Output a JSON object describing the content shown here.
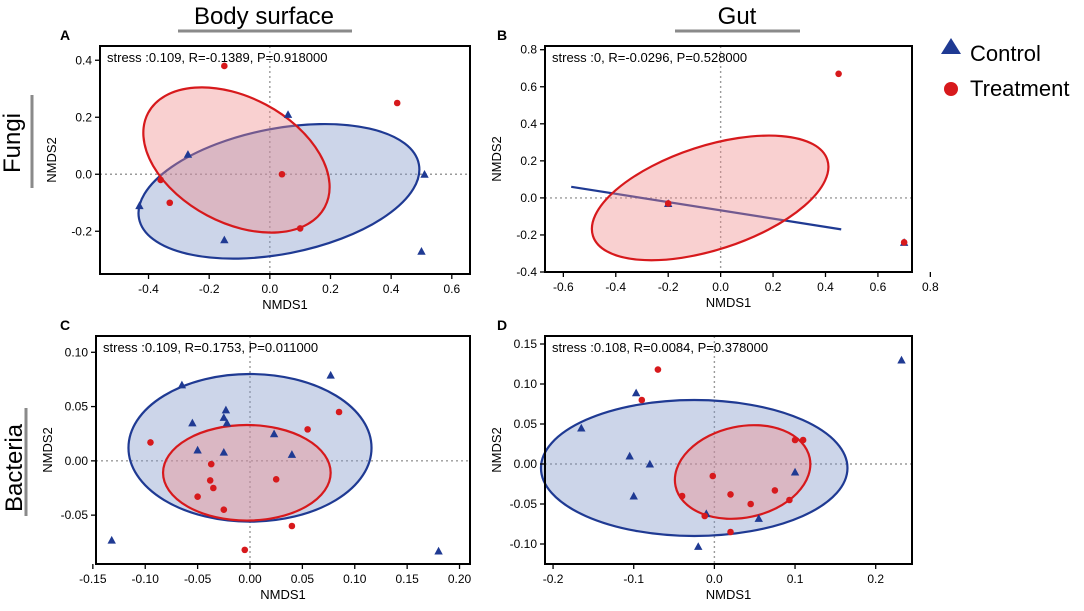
{
  "headers": {
    "left": "Body surface",
    "right": "Gut",
    "row1": "Fungi",
    "row2": "Bacteria"
  },
  "legend": {
    "control": "Control",
    "treatment": "Treatment"
  },
  "colors": {
    "control": "#1F3A93",
    "treatment": "#D7191C",
    "control_fill": "#7F97C9",
    "treatment_fill": "#F08A8A",
    "axis_line": "#000000",
    "zero_line": "#9A9A9A"
  },
  "chart_data": [
    {
      "type": "scatter",
      "panel": "A",
      "annotation": "stress :0.109, R=-0.1389, P=0.918000",
      "xlabel": "NMDS1",
      "ylabel": "NMDS2",
      "xlim": [
        -0.56,
        0.66
      ],
      "ylim": [
        -0.35,
        0.45
      ],
      "xticks": [
        -0.4,
        -0.2,
        0.0,
        0.2,
        0.4,
        0.6
      ],
      "xtick_labels": [
        "-0.4",
        "-0.2",
        "0.0",
        "0.2",
        "0.4",
        "0.6"
      ],
      "yticks": [
        -0.2,
        0.0,
        0.2,
        0.4
      ],
      "ytick_labels": [
        "-0.2",
        "0.0",
        "0.2",
        "0.4"
      ],
      "series": [
        {
          "name": "Control",
          "points": [
            [
              -0.43,
              -0.11
            ],
            [
              -0.27,
              0.07
            ],
            [
              -0.15,
              -0.23
            ],
            [
              0.06,
              0.21
            ],
            [
              0.51,
              0.0
            ],
            [
              0.5,
              -0.27
            ]
          ],
          "ellipse": {
            "cx": 0.03,
            "cy": -0.06,
            "rx": 0.47,
            "ry": 0.22,
            "rotation": -11
          }
        },
        {
          "name": "Treatment",
          "points": [
            [
              -0.15,
              0.38
            ],
            [
              -0.36,
              -0.02
            ],
            [
              -0.33,
              -0.1
            ],
            [
              0.04,
              0.0
            ],
            [
              0.1,
              -0.19
            ],
            [
              0.42,
              0.25
            ]
          ],
          "ellipse": {
            "cx": -0.11,
            "cy": 0.05,
            "rx": 0.33,
            "ry": 0.22,
            "rotation": 28
          }
        }
      ]
    },
    {
      "type": "scatter",
      "panel": "B",
      "annotation": "stress :0, R=-0.0296, P=0.528000",
      "xlabel": "NMDS1",
      "ylabel": "NMDS2",
      "xlim": [
        -0.67,
        0.73
      ],
      "ylim": [
        -0.4,
        0.82
      ],
      "xticks": [
        -0.6,
        -0.4,
        -0.2,
        0.0,
        0.2,
        0.4,
        0.6,
        0.8
      ],
      "xtick_labels": [
        "-0.6",
        "-0.4",
        "-0.2",
        "0.0",
        "0.2",
        "0.4",
        "0.6",
        "0.8"
      ],
      "yticks": [
        -0.4,
        -0.2,
        0.0,
        0.2,
        0.4,
        0.6,
        0.8
      ],
      "ytick_labels": [
        "-0.4",
        "-0.2",
        "0.0",
        "0.2",
        "0.4",
        "0.6",
        "0.8"
      ],
      "series": [
        {
          "name": "Control",
          "points": [
            [
              -0.2,
              -0.03
            ],
            [
              0.7,
              -0.24
            ]
          ],
          "line": [
            [
              -0.57,
              0.06
            ],
            [
              0.46,
              -0.17
            ]
          ]
        },
        {
          "name": "Treatment",
          "points": [
            [
              0.45,
              0.67
            ],
            [
              0.7,
              -0.24
            ],
            [
              -0.2,
              -0.03
            ]
          ],
          "ellipse": {
            "cx": -0.04,
            "cy": 0.0,
            "rx": 0.47,
            "ry": 0.28,
            "rotation": -18
          }
        }
      ]
    },
    {
      "type": "scatter",
      "panel": "C",
      "annotation": "stress :0.109, R=0.1753, P=0.011000",
      "xlabel": "NMDS1",
      "ylabel": "NMDS2",
      "xlim": [
        -0.147,
        0.21
      ],
      "ylim": [
        -0.095,
        0.115
      ],
      "xticks": [
        -0.15,
        -0.1,
        -0.05,
        0.0,
        0.05,
        0.1,
        0.15,
        0.2
      ],
      "xtick_labels": [
        "-0.15",
        "-0.10",
        "-0.05",
        "0.00",
        "0.05",
        "0.10",
        "0.15",
        "0.20"
      ],
      "yticks": [
        -0.05,
        0.0,
        0.05,
        0.1
      ],
      "ytick_labels": [
        "-0.05",
        "0.00",
        "0.05",
        "0.10"
      ],
      "series": [
        {
          "name": "Control",
          "points": [
            [
              -0.132,
              -0.073
            ],
            [
              -0.065,
              0.07
            ],
            [
              -0.055,
              0.035
            ],
            [
              -0.05,
              0.01
            ],
            [
              -0.025,
              0.04
            ],
            [
              -0.023,
              0.047
            ],
            [
              -0.022,
              0.035
            ],
            [
              -0.025,
              0.008
            ],
            [
              0.023,
              0.025
            ],
            [
              0.04,
              0.006
            ],
            [
              0.077,
              0.079
            ],
            [
              0.18,
              -0.083
            ]
          ],
          "ellipse": {
            "cx": 0.0,
            "cy": 0.012,
            "rx": 0.116,
            "ry": 0.068,
            "rotation": 0
          }
        },
        {
          "name": "Treatment",
          "points": [
            [
              -0.095,
              0.017
            ],
            [
              -0.05,
              -0.033
            ],
            [
              -0.037,
              -0.003
            ],
            [
              -0.038,
              -0.018
            ],
            [
              -0.035,
              -0.025
            ],
            [
              -0.025,
              -0.045
            ],
            [
              -0.005,
              -0.082
            ],
            [
              0.025,
              -0.017
            ],
            [
              0.055,
              0.029
            ],
            [
              0.085,
              0.045
            ],
            [
              0.04,
              -0.06
            ]
          ],
          "ellipse": {
            "cx": -0.003,
            "cy": -0.011,
            "rx": 0.08,
            "ry": 0.044,
            "rotation": 0
          }
        }
      ]
    },
    {
      "type": "scatter",
      "panel": "D",
      "annotation": "stress :0.108, R=0.0084, P=0.378000",
      "xlabel": "NMDS1",
      "ylabel": "NMDS2",
      "xlim": [
        -0.21,
        0.245
      ],
      "ylim": [
        -0.125,
        0.16
      ],
      "xticks": [
        -0.2,
        -0.1,
        0.0,
        0.1,
        0.2
      ],
      "xtick_labels": [
        "-0.2",
        "-0.1",
        "0.0",
        "0.1",
        "0.2"
      ],
      "yticks": [
        -0.1,
        -0.05,
        0.0,
        0.05,
        0.1,
        0.15
      ],
      "ytick_labels": [
        "-0.10",
        "-0.05",
        "0.00",
        "0.05",
        "0.10",
        "0.15"
      ],
      "series": [
        {
          "name": "Control",
          "points": [
            [
              -0.165,
              0.045
            ],
            [
              -0.105,
              0.01
            ],
            [
              -0.1,
              -0.04
            ],
            [
              -0.097,
              0.089
            ],
            [
              -0.08,
              0.0
            ],
            [
              -0.02,
              -0.103
            ],
            [
              -0.01,
              -0.062
            ],
            [
              0.055,
              -0.068
            ],
            [
              0.1,
              -0.01
            ],
            [
              0.232,
              0.13
            ]
          ],
          "ellipse": {
            "cx": -0.025,
            "cy": -0.005,
            "rx": 0.19,
            "ry": 0.085,
            "rotation": 0
          }
        },
        {
          "name": "Treatment",
          "points": [
            [
              -0.09,
              0.08
            ],
            [
              -0.07,
              0.118
            ],
            [
              -0.04,
              -0.04
            ],
            [
              -0.002,
              -0.015
            ],
            [
              -0.012,
              -0.065
            ],
            [
              0.02,
              -0.085
            ],
            [
              0.02,
              -0.038
            ],
            [
              0.045,
              -0.05
            ],
            [
              0.075,
              -0.033
            ],
            [
              0.093,
              -0.045
            ],
            [
              0.1,
              0.03
            ],
            [
              0.11,
              0.03
            ]
          ],
          "ellipse": {
            "cx": 0.035,
            "cy": -0.01,
            "rx": 0.085,
            "ry": 0.057,
            "rotation": -12
          }
        }
      ]
    }
  ]
}
